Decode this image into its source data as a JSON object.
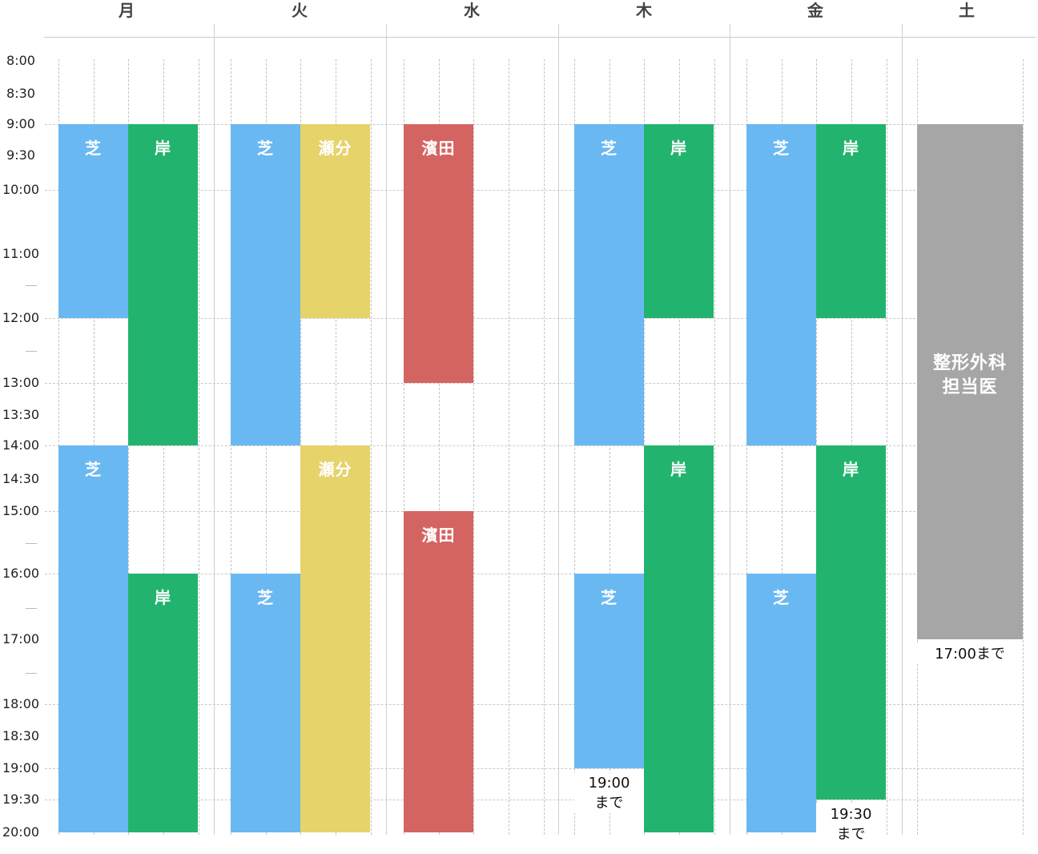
{
  "days": [
    "月",
    "火",
    "水",
    "木",
    "金",
    "土"
  ],
  "times": [
    "8:00",
    "8:30",
    "9:00",
    "9:30",
    "10:00",
    "11:00",
    "12:00",
    "13:00",
    "13:30",
    "14:00",
    "14:30",
    "15:00",
    "16:00",
    "17:00",
    "18:00",
    "18:30",
    "19:00",
    "19:30",
    "20:00"
  ],
  "colors": {
    "shiba": "#6ab8f2",
    "kishi": "#22b46f",
    "sebun": "#e6d36a",
    "hamada": "#d46462",
    "seikei": "#a6a6a6"
  },
  "schedule": [
    {
      "day": "月",
      "name": "芝",
      "start": "9:00",
      "end": "12:00",
      "color": "shiba"
    },
    {
      "day": "月",
      "name": "岸",
      "start": "9:00",
      "end": "14:00",
      "color": "kishi"
    },
    {
      "day": "月",
      "name": "芝",
      "start": "14:00",
      "end": "20:00",
      "color": "shiba"
    },
    {
      "day": "月",
      "name": "岸",
      "start": "16:00",
      "end": "20:00",
      "color": "kishi"
    },
    {
      "day": "火",
      "name": "芝",
      "start": "9:00",
      "end": "14:00",
      "color": "shiba"
    },
    {
      "day": "火",
      "name": "瀬分",
      "start": "9:00",
      "end": "12:00",
      "color": "sebun"
    },
    {
      "day": "火",
      "name": "瀬分",
      "start": "14:00",
      "end": "20:00",
      "color": "sebun"
    },
    {
      "day": "火",
      "name": "芝",
      "start": "16:00",
      "end": "20:00",
      "color": "shiba"
    },
    {
      "day": "水",
      "name": "濱田",
      "start": "9:00",
      "end": "13:00",
      "color": "hamada"
    },
    {
      "day": "水",
      "name": "濱田",
      "start": "15:00",
      "end": "20:00",
      "color": "hamada"
    },
    {
      "day": "木",
      "name": "芝",
      "start": "9:00",
      "end": "14:00",
      "color": "shiba"
    },
    {
      "day": "木",
      "name": "岸",
      "start": "9:00",
      "end": "12:00",
      "color": "kishi"
    },
    {
      "day": "木",
      "name": "岸",
      "start": "14:00",
      "end": "20:00",
      "color": "kishi"
    },
    {
      "day": "木",
      "name": "芝",
      "start": "16:00",
      "end": "19:00",
      "color": "shiba",
      "note": "19:00\nまで"
    },
    {
      "day": "金",
      "name": "芝",
      "start": "9:00",
      "end": "14:00",
      "color": "shiba"
    },
    {
      "day": "金",
      "name": "岸",
      "start": "9:00",
      "end": "12:00",
      "color": "kishi"
    },
    {
      "day": "金",
      "name": "岸",
      "start": "14:00",
      "end": "19:30",
      "color": "kishi",
      "note": "19:30\nまで"
    },
    {
      "day": "金",
      "name": "芝",
      "start": "16:00",
      "end": "20:00",
      "color": "shiba"
    },
    {
      "day": "土",
      "name": "整形外科\n担当医",
      "start": "9:00",
      "end": "17:00",
      "color": "seikei",
      "note": "17:00まで"
    }
  ]
}
